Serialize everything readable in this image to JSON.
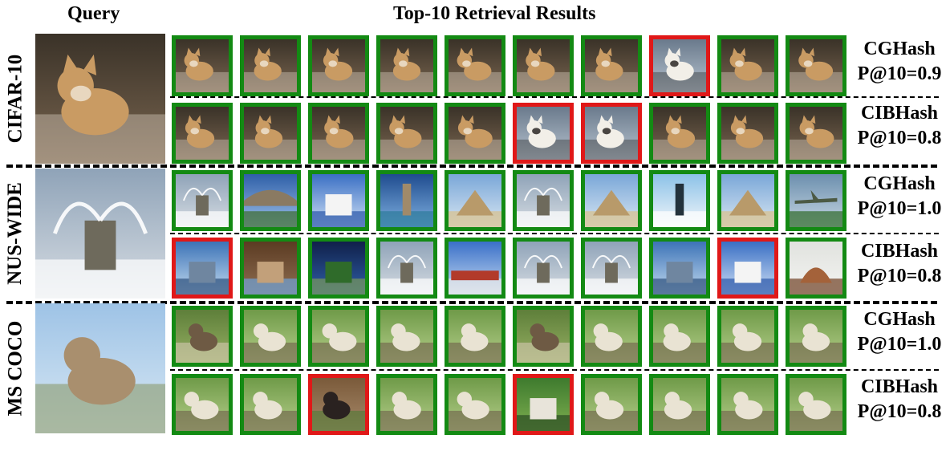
{
  "headers": {
    "query": "Query",
    "results": "Top-10 Retrieval Results"
  },
  "colors": {
    "correct": "#138a13",
    "incorrect": "#e01818"
  },
  "datasets": [
    {
      "name": "CIFAR-10",
      "query_image": "cat",
      "rows": [
        {
          "method": "CGHash",
          "score": "P@10=0.9",
          "results": [
            "cat",
            "cat",
            "cat",
            "cat",
            "cat",
            "cat",
            "cat",
            "dog",
            "cat",
            "cat"
          ],
          "correct": [
            true,
            true,
            true,
            true,
            true,
            true,
            true,
            false,
            true,
            true
          ]
        },
        {
          "method": "CIBHash",
          "score": "P@10=0.8",
          "results": [
            "cat",
            "cat",
            "cat",
            "cat",
            "cat",
            "dog",
            "dog",
            "cat",
            "cat",
            "cat"
          ],
          "correct": [
            true,
            true,
            true,
            true,
            true,
            false,
            false,
            true,
            true,
            true
          ]
        }
      ]
    },
    {
      "name": "NUS-WIDE",
      "query_image": "fountain",
      "rows": [
        {
          "method": "CGHash",
          "score": "P@10=1.0",
          "results": [
            "fountain",
            "bridge",
            "building",
            "tower",
            "pyramid",
            "fountain",
            "pyramid",
            "statue",
            "pyramid",
            "plane"
          ],
          "correct": [
            true,
            true,
            true,
            true,
            true,
            true,
            true,
            true,
            true,
            true
          ]
        },
        {
          "method": "CIBHash",
          "score": "P@10=0.8",
          "results": [
            "lake",
            "canyon",
            "garden",
            "fountain",
            "train",
            "fountain",
            "fountain",
            "lake",
            "building",
            "hut"
          ],
          "correct": [
            false,
            true,
            true,
            true,
            true,
            true,
            true,
            true,
            false,
            true
          ]
        }
      ]
    },
    {
      "name": "MS COCO",
      "query_image": "ram",
      "rows": [
        {
          "method": "CGHash",
          "score": "P@10=1.0",
          "results": [
            "goat",
            "sheep",
            "sheep",
            "sheep",
            "sheep",
            "goat",
            "sheep",
            "sheep",
            "sheep",
            "sheep"
          ],
          "correct": [
            true,
            true,
            true,
            true,
            true,
            true,
            true,
            true,
            true,
            true
          ]
        },
        {
          "method": "CIBHash",
          "score": "P@10=0.8",
          "results": [
            "sheep",
            "sheep",
            "horse",
            "sheep",
            "sheep",
            "grass",
            "sheep",
            "sheep",
            "sheep",
            "sheep"
          ],
          "correct": [
            true,
            true,
            false,
            true,
            true,
            false,
            true,
            true,
            true,
            true
          ]
        }
      ]
    }
  ]
}
